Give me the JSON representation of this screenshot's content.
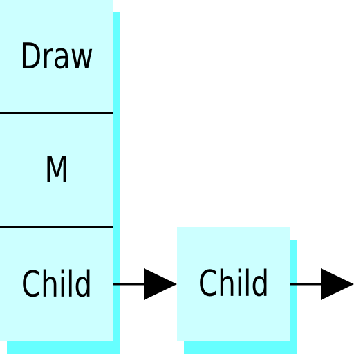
{
  "colors": {
    "box_fill": "#ccffff",
    "box_shadow": "#66ffff",
    "line": "#000000"
  },
  "stack": {
    "cells": [
      {
        "label": "Draw"
      },
      {
        "label": "M"
      },
      {
        "label": "Child"
      }
    ]
  },
  "child_node": {
    "label": "Child"
  }
}
